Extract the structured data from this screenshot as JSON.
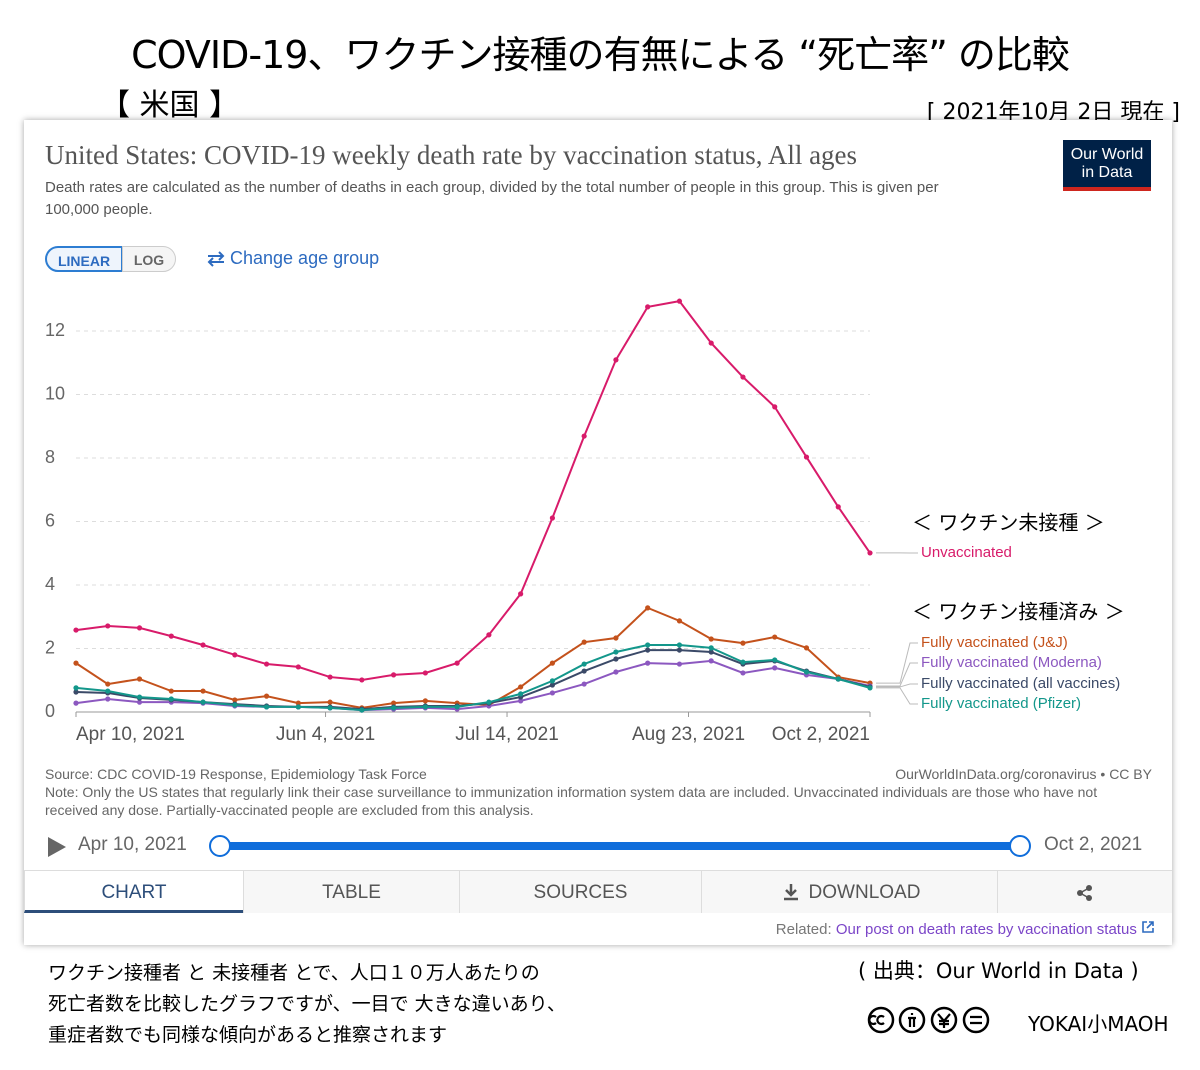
{
  "header": {
    "title": "COVID-19、ワクチン接種の有無による “死亡率” の比較",
    "region": "【 米国 】",
    "date": "[ 2021年10月 2日 現在 ]"
  },
  "chart_data": {
    "type": "line",
    "title": "United States: COVID-19 weekly death rate by vaccination status, All ages",
    "subtitle": "Death rates are calculated as the number of deaths in each group, divided by the total number of people in this group. This is given per 100,000 people.",
    "x": [
      "2021-04-10",
      "2021-04-17",
      "2021-04-24",
      "2021-05-01",
      "2021-05-08",
      "2021-05-15",
      "2021-05-22",
      "2021-05-29",
      "2021-06-05",
      "2021-06-12",
      "2021-06-19",
      "2021-06-26",
      "2021-07-03",
      "2021-07-10",
      "2021-07-17",
      "2021-07-24",
      "2021-07-31",
      "2021-08-07",
      "2021-08-14",
      "2021-08-21",
      "2021-08-28",
      "2021-09-04",
      "2021-09-11",
      "2021-09-18",
      "2021-09-25",
      "2021-10-02"
    ],
    "xlim": [
      "2021-04-10",
      "2021-10-02"
    ],
    "xticks": [
      {
        "value": "2021-04-10",
        "label": "Apr 10, 2021"
      },
      {
        "value": "2021-06-04",
        "label": "Jun 4, 2021"
      },
      {
        "value": "2021-07-14",
        "label": "Jul 14, 2021"
      },
      {
        "value": "2021-08-23",
        "label": "Aug 23, 2021"
      },
      {
        "value": "2021-10-02",
        "label": "Oct 2, 2021"
      }
    ],
    "ylim": [
      0,
      13
    ],
    "yticks": [
      0,
      2,
      4,
      6,
      8,
      10,
      12
    ],
    "log_scale": false,
    "grid": true,
    "series": [
      {
        "name": "Unvaccinated",
        "color": "#d81b6a",
        "values": [
          2.58,
          2.71,
          2.65,
          2.39,
          2.11,
          1.8,
          1.51,
          1.42,
          1.1,
          1.01,
          1.17,
          1.23,
          1.54,
          2.43,
          3.72,
          6.11,
          8.69,
          11.09,
          12.76,
          12.94,
          11.62,
          10.55,
          9.61,
          8.03,
          6.46,
          5.01
        ]
      },
      {
        "name": "Fully vaccinated (J&J)",
        "color": "#c4521c",
        "values": [
          1.54,
          0.88,
          1.04,
          0.66,
          0.66,
          0.38,
          0.5,
          0.28,
          0.31,
          0.13,
          0.28,
          0.35,
          0.28,
          0.22,
          0.79,
          1.54,
          2.2,
          2.33,
          3.28,
          2.87,
          2.3,
          2.17,
          2.36,
          2.02,
          1.1,
          0.91
        ]
      },
      {
        "name": "Fully vaccinated (Moderna)",
        "color": "#8c58c0",
        "values": [
          0.28,
          0.41,
          0.31,
          0.31,
          0.28,
          0.19,
          0.16,
          0.16,
          0.13,
          0.06,
          0.09,
          0.13,
          0.09,
          0.19,
          0.35,
          0.6,
          0.88,
          1.26,
          1.54,
          1.51,
          1.61,
          1.23,
          1.39,
          1.17,
          1.04,
          0.82
        ]
      },
      {
        "name": "Fully vaccinated (all vaccines)",
        "color": "#3b4a68",
        "values": [
          0.63,
          0.6,
          0.44,
          0.38,
          0.31,
          0.25,
          0.19,
          0.16,
          0.16,
          0.09,
          0.16,
          0.19,
          0.19,
          0.28,
          0.47,
          0.85,
          1.29,
          1.67,
          1.95,
          1.95,
          1.89,
          1.51,
          1.61,
          1.29,
          1.04,
          0.79
        ]
      },
      {
        "name": "Fully vaccinated (Pfizer)",
        "color": "#13978b",
        "values": [
          0.76,
          0.66,
          0.47,
          0.41,
          0.31,
          0.22,
          0.16,
          0.16,
          0.13,
          0.06,
          0.13,
          0.16,
          0.16,
          0.31,
          0.57,
          0.98,
          1.51,
          1.89,
          2.11,
          2.11,
          2.02,
          1.57,
          1.64,
          1.26,
          1.04,
          0.76
        ]
      }
    ],
    "annotations": [
      "＜ ワクチン未接種 ＞",
      "＜ ワクチン接種済み ＞"
    ]
  },
  "logo": [
    "Our World",
    "in Data"
  ],
  "controls": {
    "linear": "LINEAR",
    "log": "LOG",
    "age": "Change age group"
  },
  "source": "Source: CDC COVID-19 Response, Epidemiology Task Force",
  "license": "OurWorldInData.org/coronavirus • CC BY",
  "note": "Note: Only the US states that regularly link their case surveillance to immunization information system data are included. Unvaccinated individuals are those who have not received any dose. Partially-vaccinated people are excluded from this analysis.",
  "timeline": {
    "start": "Apr 10, 2021",
    "end": "Oct 2, 2021"
  },
  "tabs": [
    "CHART",
    "TABLE",
    "SOURCES",
    "DOWNLOAD"
  ],
  "related": {
    "label": "Related:",
    "link": "Our post on death rates by vaccination status"
  },
  "footer": {
    "lines": [
      "ワクチン接種者 と 未接種者 とで、人口１０万人あたりの",
      "死亡者数を比較したグラフですが、一目で 大きな違いあり、",
      "重症者数でも同様な傾向があると推察されます"
    ],
    "citation": "( 出典：Our World in Data )",
    "brand": "YOKAI小MAOH"
  }
}
